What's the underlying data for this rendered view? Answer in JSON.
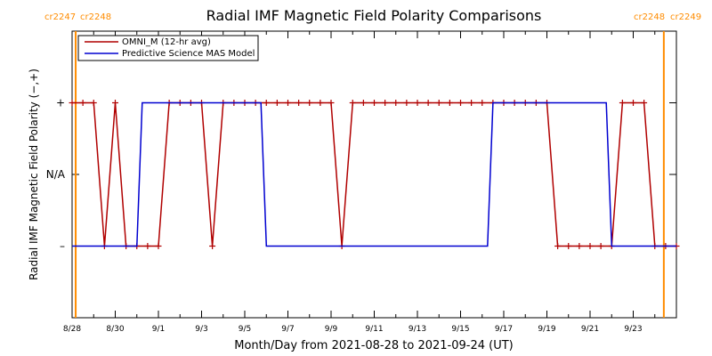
{
  "chart_data": {
    "type": "line",
    "title": "Radial IMF Magnetic Field Polarity Comparisons",
    "xlabel": "Month/Day from 2021-08-28 to 2021-09-24 (UT)",
    "ylabel": "Radial IMF Magnetic Field Polarity (−,+)",
    "x_ticks": [
      "8/28",
      "8/30",
      "9/1",
      "9/3",
      "9/5",
      "9/7",
      "9/9",
      "9/11",
      "9/13",
      "9/15",
      "9/17",
      "9/19",
      "9/21",
      "9/23"
    ],
    "y_ticks": [
      {
        "label": "+",
        "value": 1
      },
      {
        "label": "N/A",
        "value": 0
      },
      {
        "label": "–",
        "value": -1
      }
    ],
    "xlim": [
      "2021-08-28",
      "2021-09-24"
    ],
    "ylim": [
      -2,
      2
    ],
    "carrington_markers": [
      {
        "date": "2021-08-28T04:00",
        "left_label": "cr2247",
        "right_label": "cr2248"
      },
      {
        "date": "2021-09-24T10:00",
        "left_label": "cr2248",
        "right_label": "cr2249"
      }
    ],
    "legend": {
      "placement": "top-left",
      "entries": [
        "OMNI_M (12-hr avg)",
        "Predictive Science MAS Model"
      ]
    },
    "series": [
      {
        "name": "OMNI_M (12-hr avg)",
        "color": "#b00000",
        "marker": "plus",
        "points": [
          [
            "2021-08-28T00:00",
            1
          ],
          [
            "2021-08-28T12:00",
            1
          ],
          [
            "2021-08-29T00:00",
            1
          ],
          [
            "2021-08-29T12:00",
            -1
          ],
          [
            "2021-08-30T00:00",
            1
          ],
          [
            "2021-08-30T12:00",
            -1
          ],
          [
            "2021-08-31T00:00",
            -1
          ],
          [
            "2021-08-31T12:00",
            -1
          ],
          [
            "2021-09-01T00:00",
            -1
          ],
          [
            "2021-09-01T12:00",
            1
          ],
          [
            "2021-09-02T00:00",
            1
          ],
          [
            "2021-09-02T12:00",
            1
          ],
          [
            "2021-09-03T00:00",
            1
          ],
          [
            "2021-09-03T12:00",
            -1
          ],
          [
            "2021-09-04T00:00",
            1
          ],
          [
            "2021-09-04T12:00",
            1
          ],
          [
            "2021-09-05T00:00",
            1
          ],
          [
            "2021-09-05T12:00",
            1
          ],
          [
            "2021-09-06T00:00",
            1
          ],
          [
            "2021-09-06T12:00",
            1
          ],
          [
            "2021-09-07T00:00",
            1
          ],
          [
            "2021-09-07T12:00",
            1
          ],
          [
            "2021-09-08T00:00",
            1
          ],
          [
            "2021-09-08T12:00",
            1
          ],
          [
            "2021-09-09T00:00",
            1
          ],
          [
            "2021-09-09T12:00",
            -1
          ],
          [
            "2021-09-10T00:00",
            1
          ],
          [
            "2021-09-10T12:00",
            1
          ],
          [
            "2021-09-11T00:00",
            1
          ],
          [
            "2021-09-11T12:00",
            1
          ],
          [
            "2021-09-12T00:00",
            1
          ],
          [
            "2021-09-12T12:00",
            1
          ],
          [
            "2021-09-13T00:00",
            1
          ],
          [
            "2021-09-13T12:00",
            1
          ],
          [
            "2021-09-14T00:00",
            1
          ],
          [
            "2021-09-14T12:00",
            1
          ],
          [
            "2021-09-15T00:00",
            1
          ],
          [
            "2021-09-15T12:00",
            1
          ],
          [
            "2021-09-16T00:00",
            1
          ],
          [
            "2021-09-16T12:00",
            1
          ],
          [
            "2021-09-17T00:00",
            1
          ],
          [
            "2021-09-17T12:00",
            1
          ],
          [
            "2021-09-18T00:00",
            1
          ],
          [
            "2021-09-18T12:00",
            1
          ],
          [
            "2021-09-19T00:00",
            1
          ],
          [
            "2021-09-19T12:00",
            -1
          ],
          [
            "2021-09-20T00:00",
            -1
          ],
          [
            "2021-09-20T12:00",
            -1
          ],
          [
            "2021-09-21T00:00",
            -1
          ],
          [
            "2021-09-21T12:00",
            -1
          ],
          [
            "2021-09-22T00:00",
            -1
          ],
          [
            "2021-09-22T12:00",
            1
          ],
          [
            "2021-09-23T00:00",
            1
          ],
          [
            "2021-09-23T12:00",
            1
          ],
          [
            "2021-09-24T00:00",
            -1
          ],
          [
            "2021-09-24T12:00",
            -1
          ],
          [
            "2021-09-25T00:00",
            -1
          ]
        ]
      },
      {
        "name": "Predictive Science MAS Model",
        "color": "#0000d0",
        "points": [
          [
            "2021-08-28T00:00",
            -1
          ],
          [
            "2021-08-31T00:00",
            -1
          ],
          [
            "2021-08-31T06:00",
            1
          ],
          [
            "2021-09-05T18:00",
            1
          ],
          [
            "2021-09-06T00:00",
            -1
          ],
          [
            "2021-09-16T06:00",
            -1
          ],
          [
            "2021-09-16T12:00",
            1
          ],
          [
            "2021-09-21T18:00",
            1
          ],
          [
            "2021-09-22T00:00",
            -1
          ],
          [
            "2021-09-25T00:00",
            -1
          ]
        ]
      }
    ]
  }
}
